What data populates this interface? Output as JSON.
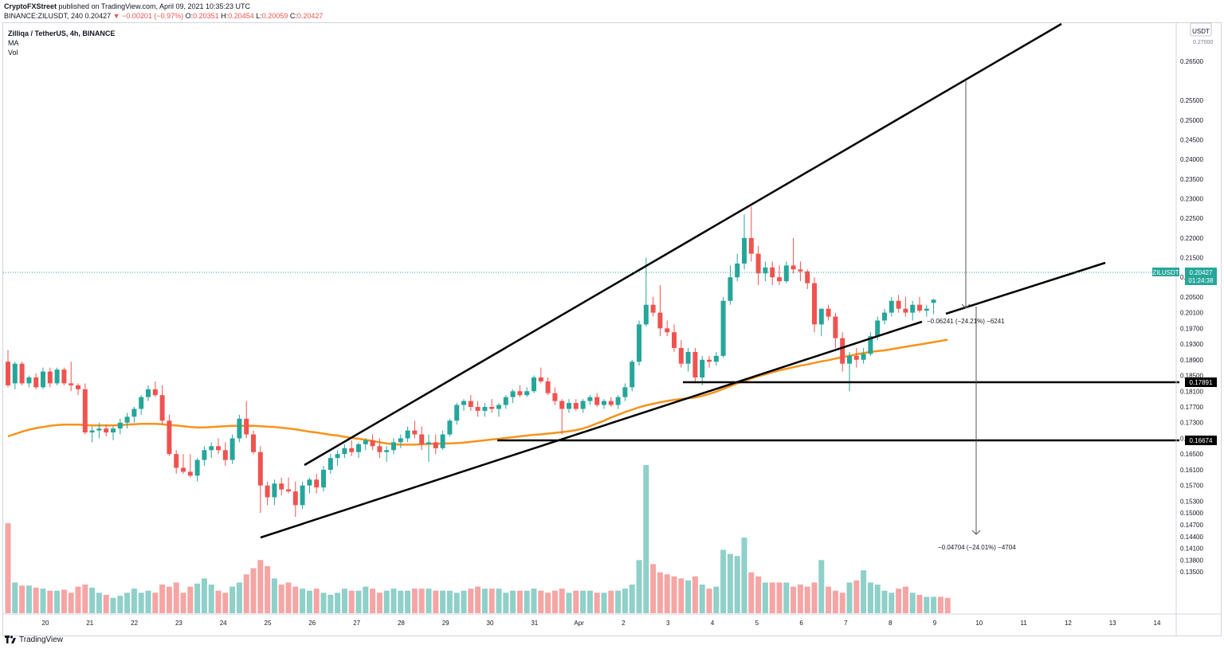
{
  "header": {
    "publisher": "CryptoFXStreet",
    "published_text": "published on TradingView.com, April 09, 2021 10:35:23 UTC",
    "symbol_line": "BINANCE:ZILUSDT, 240",
    "last": "0.20427",
    "change": "−0.00201 (−0.97%)",
    "o_label": "O:",
    "o": "0.20351",
    "h_label": "H:",
    "h": "0.20454",
    "l_label": "L:",
    "l": "0.20059",
    "c_label": "C:",
    "c": "0.20427"
  },
  "legend": {
    "pair": "Zilliqa / TetherUS, 4h, BINANCE",
    "ma": "MA",
    "vol": "Vol"
  },
  "price_axis": {
    "currency": "USDT",
    "symbol_tag": "ZILUSDT",
    "last_price": "0.20427",
    "countdown": "01:24:38",
    "level_1": "0.17891",
    "level_2": "0.16674",
    "top_tick": "0.27000"
  },
  "annotations": {
    "measure_1": "−0.06241 (−24.21%) −6241",
    "measure_2": "−0.04704 (−24.01%) −4704"
  },
  "footer": {
    "brand": "TradingView"
  },
  "colors": {
    "up": "#26a69a",
    "down": "#ef5350",
    "vol_up": "#8fd0c9",
    "vol_down": "#f5a5a4",
    "ma": "#f7931a",
    "price_line": "#26a69a",
    "trendline": "#000000"
  },
  "chart_data": {
    "type": "candlestick",
    "title": "Zilliqa / TetherUS, 4h, BINANCE",
    "ylim": [
      0.1245,
      0.2745
    ],
    "y_ticks": [
      "0.26500",
      "0.25500",
      "0.25000",
      "0.24500",
      "0.24000",
      "0.23500",
      "0.23000",
      "0.22500",
      "0.22000",
      "0.21500",
      "0.21000",
      "0.20500",
      "0.20100",
      "0.19700",
      "0.19300",
      "0.18900",
      "0.18500",
      "0.18100",
      "0.17700",
      "0.17300",
      "0.16900",
      "0.16500",
      "0.16100",
      "0.15700",
      "0.15300",
      "0.15000",
      "0.14700",
      "0.14400",
      "0.14100",
      "0.13800",
      "0.13500"
    ],
    "x_ticks": [
      "20",
      "21",
      "22",
      "23",
      "24",
      "25",
      "26",
      "27",
      "28",
      "29",
      "30",
      "31",
      "Apr",
      "2",
      "3",
      "4",
      "5",
      "6",
      "7",
      "8",
      "9",
      "10",
      "11",
      "12",
      "13",
      "14"
    ],
    "candles": [
      [
        0.1885,
        0.1915,
        0.182,
        0.1825
      ],
      [
        0.183,
        0.1885,
        0.1815,
        0.188
      ],
      [
        0.188,
        0.1885,
        0.1825,
        0.183
      ],
      [
        0.183,
        0.185,
        0.182,
        0.1845
      ],
      [
        0.1845,
        0.1855,
        0.1815,
        0.182
      ],
      [
        0.182,
        0.187,
        0.1815,
        0.186
      ],
      [
        0.186,
        0.187,
        0.182,
        0.183
      ],
      [
        0.183,
        0.187,
        0.1825,
        0.1865
      ],
      [
        0.1865,
        0.187,
        0.1825,
        0.183
      ],
      [
        0.183,
        0.1885,
        0.181,
        0.1825
      ],
      [
        0.1825,
        0.183,
        0.18,
        0.1815
      ],
      [
        0.1815,
        0.183,
        0.17,
        0.1705
      ],
      [
        0.1705,
        0.172,
        0.168,
        0.171
      ],
      [
        0.171,
        0.173,
        0.169,
        0.1715
      ],
      [
        0.1715,
        0.1725,
        0.1695,
        0.1705
      ],
      [
        0.1705,
        0.172,
        0.1685,
        0.1715
      ],
      [
        0.1715,
        0.174,
        0.17,
        0.173
      ],
      [
        0.173,
        0.1755,
        0.1715,
        0.1745
      ],
      [
        0.1745,
        0.177,
        0.173,
        0.1765
      ],
      [
        0.1765,
        0.18,
        0.175,
        0.1795
      ],
      [
        0.1795,
        0.1825,
        0.1785,
        0.1815
      ],
      [
        0.1815,
        0.1835,
        0.1795,
        0.18
      ],
      [
        0.18,
        0.1825,
        0.1725,
        0.1735
      ],
      [
        0.1735,
        0.175,
        0.1645,
        0.165
      ],
      [
        0.165,
        0.166,
        0.16,
        0.1615
      ],
      [
        0.1615,
        0.165,
        0.16,
        0.1605
      ],
      [
        0.1605,
        0.165,
        0.159,
        0.1595
      ],
      [
        0.1595,
        0.164,
        0.158,
        0.1635
      ],
      [
        0.1635,
        0.167,
        0.162,
        0.166
      ],
      [
        0.166,
        0.168,
        0.164,
        0.167
      ],
      [
        0.167,
        0.169,
        0.165,
        0.166
      ],
      [
        0.166,
        0.168,
        0.162,
        0.1635
      ],
      [
        0.1635,
        0.17,
        0.1625,
        0.169
      ],
      [
        0.169,
        0.175,
        0.168,
        0.174
      ],
      [
        0.174,
        0.1785,
        0.169,
        0.17
      ],
      [
        0.17,
        0.171,
        0.165,
        0.1655
      ],
      [
        0.1655,
        0.167,
        0.15,
        0.157
      ],
      [
        0.157,
        0.158,
        0.152,
        0.154
      ],
      [
        0.154,
        0.1585,
        0.152,
        0.1575
      ],
      [
        0.1575,
        0.159,
        0.1545,
        0.156
      ],
      [
        0.156,
        0.159,
        0.155,
        0.1555
      ],
      [
        0.1555,
        0.158,
        0.149,
        0.152
      ],
      [
        0.152,
        0.158,
        0.151,
        0.157
      ],
      [
        0.157,
        0.159,
        0.155,
        0.1585
      ],
      [
        0.1585,
        0.16,
        0.155,
        0.1565
      ],
      [
        0.1565,
        0.162,
        0.1555,
        0.161
      ],
      [
        0.161,
        0.165,
        0.16,
        0.164
      ],
      [
        0.164,
        0.166,
        0.162,
        0.165
      ],
      [
        0.165,
        0.1675,
        0.164,
        0.1665
      ],
      [
        0.1665,
        0.1685,
        0.1645,
        0.1655
      ],
      [
        0.1655,
        0.168,
        0.164,
        0.1675
      ],
      [
        0.1675,
        0.169,
        0.166,
        0.1685
      ],
      [
        0.1685,
        0.17,
        0.166,
        0.167
      ],
      [
        0.167,
        0.169,
        0.164,
        0.1655
      ],
      [
        0.1655,
        0.167,
        0.163,
        0.166
      ],
      [
        0.166,
        0.169,
        0.165,
        0.168
      ],
      [
        0.168,
        0.17,
        0.1665,
        0.169
      ],
      [
        0.169,
        0.172,
        0.168,
        0.171
      ],
      [
        0.171,
        0.1735,
        0.169,
        0.17
      ],
      [
        0.17,
        0.172,
        0.166,
        0.1675
      ],
      [
        0.1675,
        0.17,
        0.163,
        0.168
      ],
      [
        0.168,
        0.17,
        0.165,
        0.1665
      ],
      [
        0.1665,
        0.171,
        0.166,
        0.17
      ],
      [
        0.17,
        0.174,
        0.1695,
        0.1735
      ],
      [
        0.1735,
        0.178,
        0.1725,
        0.1775
      ],
      [
        0.1775,
        0.179,
        0.176,
        0.1785
      ],
      [
        0.1785,
        0.18,
        0.176,
        0.177
      ],
      [
        0.177,
        0.1785,
        0.1745,
        0.176
      ],
      [
        0.176,
        0.178,
        0.1745,
        0.177
      ],
      [
        0.177,
        0.179,
        0.1755,
        0.1765
      ],
      [
        0.1765,
        0.178,
        0.1745,
        0.1775
      ],
      [
        0.1775,
        0.18,
        0.1765,
        0.1795
      ],
      [
        0.1795,
        0.1815,
        0.178,
        0.181
      ],
      [
        0.181,
        0.1825,
        0.1795,
        0.18
      ],
      [
        0.18,
        0.182,
        0.1795,
        0.181
      ],
      [
        0.181,
        0.185,
        0.1805,
        0.1845
      ],
      [
        0.1845,
        0.187,
        0.183,
        0.1835
      ],
      [
        0.1835,
        0.1845,
        0.18,
        0.1805
      ],
      [
        0.1805,
        0.182,
        0.1775,
        0.1785
      ],
      [
        0.1785,
        0.179,
        0.17,
        0.1765
      ],
      [
        0.1765,
        0.179,
        0.1755,
        0.178
      ],
      [
        0.178,
        0.179,
        0.176,
        0.1765
      ],
      [
        0.1765,
        0.179,
        0.1755,
        0.1785
      ],
      [
        0.1785,
        0.18,
        0.1775,
        0.1795
      ],
      [
        0.1795,
        0.1805,
        0.177,
        0.1775
      ],
      [
        0.1775,
        0.179,
        0.1765,
        0.1785
      ],
      [
        0.1785,
        0.1795,
        0.177,
        0.1775
      ],
      [
        0.1775,
        0.18,
        0.1765,
        0.1795
      ],
      [
        0.1795,
        0.183,
        0.1785,
        0.182
      ],
      [
        0.182,
        0.189,
        0.181,
        0.1885
      ],
      [
        0.1885,
        0.199,
        0.1875,
        0.198
      ],
      [
        0.198,
        0.215,
        0.1975,
        0.203
      ],
      [
        0.203,
        0.205,
        0.2,
        0.201
      ],
      [
        0.201,
        0.208,
        0.195,
        0.197
      ],
      [
        0.197,
        0.199,
        0.195,
        0.196
      ],
      [
        0.196,
        0.198,
        0.191,
        0.192
      ],
      [
        0.192,
        0.194,
        0.187,
        0.188
      ],
      [
        0.188,
        0.192,
        0.186,
        0.191
      ],
      [
        0.191,
        0.192,
        0.183,
        0.1845
      ],
      [
        0.1845,
        0.19,
        0.1825,
        0.189
      ],
      [
        0.189,
        0.19,
        0.187,
        0.1885
      ],
      [
        0.1885,
        0.191,
        0.1875,
        0.19
      ],
      [
        0.19,
        0.205,
        0.1895,
        0.204
      ],
      [
        0.204,
        0.213,
        0.203,
        0.21
      ],
      [
        0.21,
        0.216,
        0.209,
        0.2135
      ],
      [
        0.2135,
        0.226,
        0.212,
        0.22
      ],
      [
        0.22,
        0.228,
        0.214,
        0.216
      ],
      [
        0.216,
        0.218,
        0.208,
        0.211
      ],
      [
        0.211,
        0.214,
        0.209,
        0.2125
      ],
      [
        0.2125,
        0.214,
        0.208,
        0.21
      ],
      [
        0.21,
        0.213,
        0.208,
        0.209
      ],
      [
        0.209,
        0.214,
        0.2085,
        0.213
      ],
      [
        0.213,
        0.22,
        0.211,
        0.212
      ],
      [
        0.212,
        0.214,
        0.209,
        0.2115
      ],
      [
        0.2115,
        0.212,
        0.207,
        0.2085
      ],
      [
        0.2085,
        0.21,
        0.196,
        0.198
      ],
      [
        0.198,
        0.202,
        0.195,
        0.202
      ],
      [
        0.202,
        0.203,
        0.199,
        0.2
      ],
      [
        0.2,
        0.201,
        0.192,
        0.1945
      ],
      [
        0.1945,
        0.196,
        0.186,
        0.188
      ],
      [
        0.188,
        0.191,
        0.181,
        0.19
      ],
      [
        0.19,
        0.192,
        0.187,
        0.189
      ],
      [
        0.189,
        0.192,
        0.188,
        0.1905
      ],
      [
        0.1905,
        0.196,
        0.19,
        0.195
      ],
      [
        0.195,
        0.2,
        0.194,
        0.199
      ],
      [
        0.199,
        0.202,
        0.198,
        0.201
      ],
      [
        0.201,
        0.205,
        0.2,
        0.204
      ],
      [
        0.204,
        0.2055,
        0.201,
        0.202
      ],
      [
        0.202,
        0.205,
        0.2,
        0.201
      ],
      [
        0.201,
        0.204,
        0.199,
        0.203
      ],
      [
        0.203,
        0.205,
        0.201,
        0.2015
      ],
      [
        0.2015,
        0.203,
        0.2,
        0.202
      ],
      [
        0.2035,
        0.2045,
        0.2006,
        0.2043
      ]
    ],
    "volumes": [
      88,
      30,
      27,
      27,
      25,
      24,
      22,
      22,
      23,
      20,
      26,
      28,
      25,
      20,
      18,
      15,
      17,
      20,
      24,
      20,
      22,
      20,
      28,
      26,
      30,
      20,
      26,
      29,
      34,
      28,
      22,
      20,
      26,
      30,
      38,
      44,
      52,
      46,
      34,
      28,
      30,
      26,
      24,
      22,
      24,
      20,
      18,
      20,
      24,
      22,
      22,
      26,
      24,
      20,
      22,
      24,
      22,
      22,
      24,
      24,
      24,
      22,
      22,
      22,
      20,
      22,
      24,
      26,
      24,
      24,
      24,
      20,
      22,
      22,
      22,
      24,
      22,
      20,
      22,
      24,
      20,
      22,
      22,
      22,
      20,
      20,
      22,
      22,
      24,
      28,
      52,
      145,
      48,
      40,
      38,
      36,
      34,
      32,
      36,
      28,
      24,
      26,
      62,
      58,
      56,
      74,
      40,
      36,
      30,
      30,
      30,
      30,
      26,
      28,
      26,
      30,
      52,
      26,
      22,
      20,
      30,
      32,
      42,
      30,
      28,
      22,
      20,
      24,
      26,
      20,
      18,
      16,
      16,
      16,
      15
    ],
    "ma": [
      0.1695,
      0.1701,
      0.1707,
      0.1712,
      0.1716,
      0.1719,
      0.1722,
      0.1724,
      0.1725,
      0.1725,
      0.1725,
      0.1724,
      0.1723,
      0.1723,
      0.1723,
      0.1723,
      0.1724,
      0.1725,
      0.1726,
      0.1727,
      0.1727,
      0.1727,
      0.1726,
      0.1724,
      0.1723,
      0.1721,
      0.1719,
      0.1718,
      0.1718,
      0.1719,
      0.172,
      0.1721,
      0.1722,
      0.1722,
      0.1722,
      0.1722,
      0.1721,
      0.172,
      0.1719,
      0.1717,
      0.1715,
      0.1713,
      0.171,
      0.1707,
      0.1705,
      0.1702,
      0.1699,
      0.1697,
      0.1694,
      0.1691,
      0.1689,
      0.1686,
      0.1683,
      0.168,
      0.1677,
      0.1675,
      0.1674,
      0.1674,
      0.1674,
      0.1675,
      0.1676,
      0.1676,
      0.1677,
      0.1677,
      0.1678,
      0.1679,
      0.1681,
      0.1683,
      0.1685,
      0.1687,
      0.1689,
      0.1691,
      0.1693,
      0.1695,
      0.1697,
      0.1699,
      0.17,
      0.1702,
      0.1704,
      0.1706,
      0.1708,
      0.1711,
      0.1715,
      0.1721,
      0.1728,
      0.1735,
      0.1743,
      0.175,
      0.1757,
      0.1763,
      0.1769,
      0.1774,
      0.1778,
      0.1782,
      0.1785,
      0.1788,
      0.179,
      0.1792,
      0.1794,
      0.1798,
      0.1803,
      0.1809,
      0.1816,
      0.1823,
      0.183,
      0.1836,
      0.1842,
      0.1848,
      0.1853,
      0.1858,
      0.1863,
      0.1867,
      0.1871,
      0.1875,
      0.1878,
      0.1882,
      0.1886,
      0.1889,
      0.1893,
      0.1897,
      0.19,
      0.1904,
      0.1907,
      0.191,
      0.1912,
      0.1914,
      0.1917,
      0.192,
      0.1923,
      0.1926,
      0.1929,
      0.1932,
      0.1935,
      0.1938,
      0.1941
    ]
  }
}
